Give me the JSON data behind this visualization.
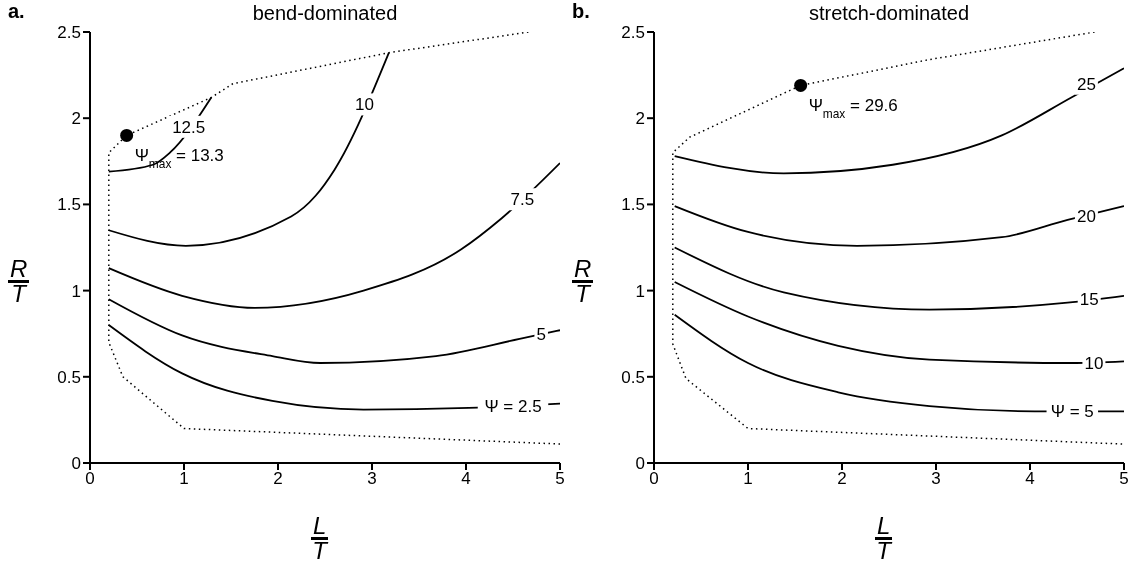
{
  "chart_data": [
    {
      "type": "line",
      "title": "bend-dominated",
      "xlabel": "L/T",
      "ylabel": "R/T",
      "xlim": [
        0,
        5
      ],
      "ylim": [
        0,
        2.5
      ],
      "xticks": [
        0,
        1,
        2,
        3,
        4,
        5
      ],
      "yticks": [
        0,
        0.5,
        1,
        1.5,
        2,
        2.5
      ],
      "marker": "none",
      "line_style": "solid",
      "series": [
        {
          "type": "line",
          "line_style": "dotted",
          "color": "#000000",
          "x": [
            5,
            1,
            0.35,
            0.2,
            0.2,
            0.39,
            1.29,
            1.52,
            3.18,
            4.67
          ],
          "values": [
            0.11,
            0.2,
            0.5,
            0.7,
            1.8,
            1.9,
            2.12,
            2.2,
            2.38,
            2.5
          ]
        },
        {
          "color": "#000000",
          "x": [
            0.2,
            0.98,
            1.94,
            2.91,
            4.03,
            5
          ],
          "values": [
            0.8,
            0.52,
            0.36,
            0.31,
            0.32,
            0.345
          ]
        },
        {
          "color": "#000000",
          "x": [
            0.2,
            0.98,
            1.94,
            2.45,
            3.68,
            4.57,
            5
          ],
          "values": [
            0.95,
            0.74,
            0.62,
            0.58,
            0.62,
            0.72,
            0.77
          ]
        },
        {
          "color": "#000000",
          "x": [
            0.2,
            0.98,
            1.75,
            2.91,
            3.95,
            4.38,
            5
          ],
          "values": [
            1.13,
            0.97,
            0.9,
            1.0,
            1.24,
            1.42,
            1.74
          ]
        },
        {
          "color": "#000000",
          "x": [
            0.2,
            1.02,
            2.14,
            2.4,
            2.6,
            3.18
          ],
          "values": [
            1.35,
            1.26,
            1.43,
            1.55,
            1.7,
            2.38
          ]
        },
        {
          "color": "#000000",
          "x": [
            0.2,
            0.67,
            0.85,
            1.29
          ],
          "values": [
            1.69,
            1.73,
            1.8,
            2.12
          ]
        },
        {
          "type": "scatter",
          "marker": "circle",
          "color": "#000000",
          "x": [
            0.39
          ],
          "values": [
            1.9
          ]
        }
      ],
      "annotations": [
        "a.",
        {
          "text": "Ψ = 2.5",
          "x": 4.5,
          "y": 0.33
        },
        {
          "text": "5",
          "x": 4.8,
          "y": 0.75
        },
        {
          "text": "7.5",
          "x": 4.6,
          "y": 1.53
        },
        {
          "text": "10",
          "x": 2.92,
          "y": 2.08
        },
        {
          "text": "12.5",
          "x": 1.05,
          "y": 1.95
        },
        {
          "text": "Ψ$_{max}$ = 13.3",
          "x": 0.39,
          "y": 1.9
        }
      ]
    },
    {
      "type": "line",
      "title": "stretch-dominated",
      "xlabel": "L/T",
      "ylabel": "R/T",
      "xlim": [
        0,
        5
      ],
      "ylim": [
        0,
        2.5
      ],
      "xticks": [
        0,
        1,
        2,
        3,
        4,
        5
      ],
      "yticks": [
        0,
        0.5,
        1,
        1.5,
        2,
        2.5
      ],
      "marker": "none",
      "line_style": "solid",
      "series": [
        {
          "type": "line",
          "line_style": "dotted",
          "color": "#000000",
          "x": [
            4.98,
            1.0,
            0.34,
            0.2,
            0.2,
            0.38,
            1.56,
            2.93,
            4.69
          ],
          "values": [
            0.11,
            0.2,
            0.49,
            0.69,
            1.8,
            1.89,
            2.19,
            2.34,
            2.5
          ]
        },
        {
          "color": "#000000",
          "x": [
            0.22,
            1.0,
            1.96,
            2.93,
            4.05,
            5
          ],
          "values": [
            0.86,
            0.58,
            0.41,
            0.33,
            0.3,
            0.3
          ]
        },
        {
          "color": "#000000",
          "x": [
            0.22,
            1.0,
            1.96,
            2.93,
            4.44,
            5
          ],
          "values": [
            1.05,
            0.85,
            0.68,
            0.6,
            0.58,
            0.59
          ]
        },
        {
          "color": "#000000",
          "x": [
            0.22,
            1.38,
            2.93,
            4.4,
            5
          ],
          "values": [
            1.25,
            0.99,
            0.89,
            0.93,
            0.97
          ]
        },
        {
          "color": "#000000",
          "x": [
            0.22,
            1.0,
            2.16,
            3.7,
            4.4,
            5
          ],
          "values": [
            1.49,
            1.34,
            1.26,
            1.31,
            1.41,
            1.49
          ]
        },
        {
          "color": "#000000",
          "x": [
            0.22,
            1.38,
            2.54,
            3.7,
            4.44,
            5
          ],
          "values": [
            1.78,
            1.68,
            1.73,
            1.9,
            2.12,
            2.29
          ]
        },
        {
          "type": "scatter",
          "marker": "circle",
          "color": "#000000",
          "x": [
            1.56
          ],
          "values": [
            2.19
          ]
        }
      ],
      "annotations": [
        "b.",
        {
          "text": "Ψ = 5",
          "x": 4.45,
          "y": 0.3
        },
        {
          "text": "10",
          "x": 4.68,
          "y": 0.58
        },
        {
          "text": "15",
          "x": 4.63,
          "y": 0.95
        },
        {
          "text": "20",
          "x": 4.6,
          "y": 1.43
        },
        {
          "text": "25",
          "x": 4.6,
          "y": 2.2
        },
        {
          "text": "Ψ$_{max}$ = 29.6",
          "x": 1.56,
          "y": 2.19
        }
      ]
    }
  ]
}
